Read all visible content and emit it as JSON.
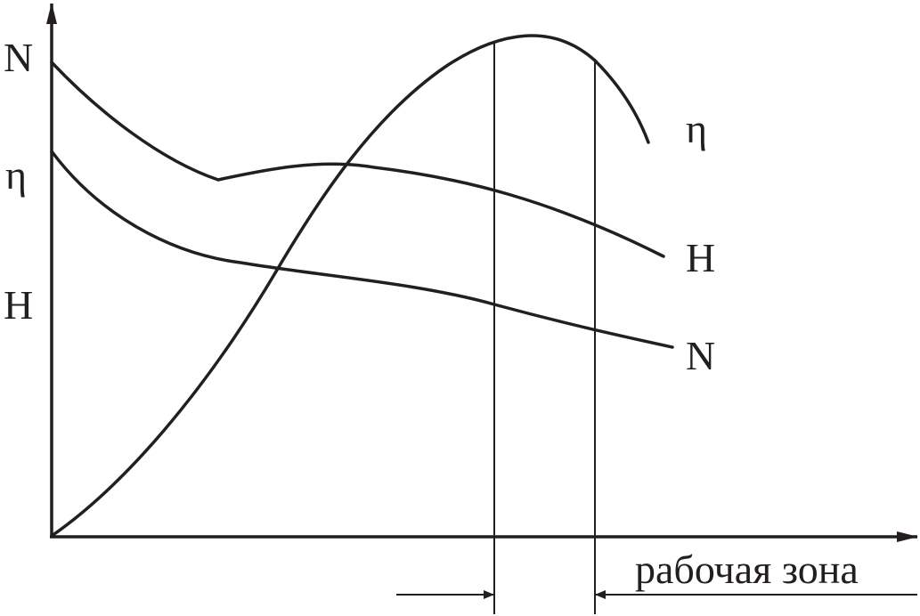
{
  "axis_labels": [
    "N",
    "η",
    "H"
  ],
  "curve_labels": [
    "η",
    "H",
    "N"
  ],
  "zone_label": "рабочая зона"
}
